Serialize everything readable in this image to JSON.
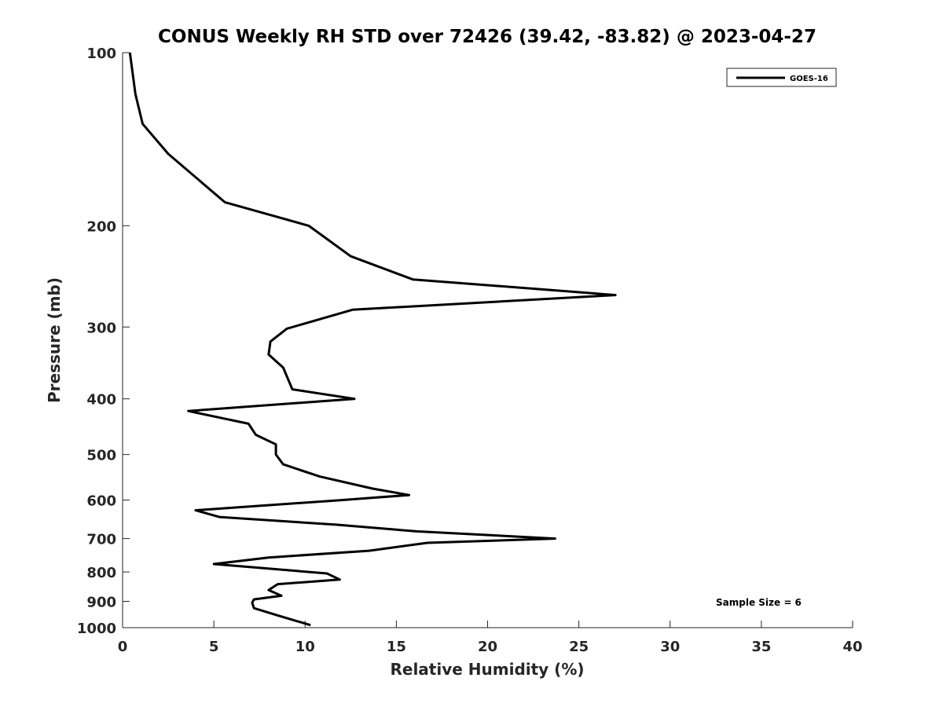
{
  "chart_data": {
    "type": "line",
    "title": "CONUS Weekly RH STD over 72426 (39.42, -83.82) @ 2023-04-27",
    "xlabel": "Relative Humidity (%)",
    "ylabel": "Pressure (mb)",
    "xlim": [
      0,
      40
    ],
    "ylim": [
      1000,
      100
    ],
    "yscale": "log",
    "y_direction": "reversed",
    "grid": false,
    "legend_position": "top-right",
    "x_ticks": [
      0,
      5,
      10,
      15,
      20,
      25,
      30,
      35,
      40
    ],
    "x_tick_labels": [
      "0",
      "5",
      "10",
      "15",
      "20",
      "25",
      "30",
      "35",
      "40"
    ],
    "y_ticks": [
      100,
      200,
      300,
      400,
      500,
      600,
      700,
      800,
      900,
      1000
    ],
    "y_tick_labels": [
      "100",
      "200",
      "300",
      "400",
      "500",
      "600",
      "700",
      "800",
      "900",
      "1000"
    ],
    "series": [
      {
        "name": "GOES-16",
        "color": "#000000",
        "points": [
          [
            0.4,
            100
          ],
          [
            0.7,
            118
          ],
          [
            1.1,
            133
          ],
          [
            2.5,
            150
          ],
          [
            5.6,
            182
          ],
          [
            10.2,
            200
          ],
          [
            12.5,
            226
          ],
          [
            15.9,
            248
          ],
          [
            27.0,
            264
          ],
          [
            12.6,
            280
          ],
          [
            9.0,
            302
          ],
          [
            8.1,
            318
          ],
          [
            8.0,
            335
          ],
          [
            8.8,
            353
          ],
          [
            9.3,
            385
          ],
          [
            12.7,
            400
          ],
          [
            3.6,
            420
          ],
          [
            6.9,
            442
          ],
          [
            7.3,
            462
          ],
          [
            8.4,
            480
          ],
          [
            8.4,
            500
          ],
          [
            8.8,
            520
          ],
          [
            10.8,
            546
          ],
          [
            13.7,
            573
          ],
          [
            15.7,
            588
          ],
          [
            12.0,
            600
          ],
          [
            4.0,
            625
          ],
          [
            5.3,
            642
          ],
          [
            11.7,
            662
          ],
          [
            16.1,
            680
          ],
          [
            23.7,
            700
          ],
          [
            16.7,
            712
          ],
          [
            13.5,
            735
          ],
          [
            8.0,
            755
          ],
          [
            5.0,
            775
          ],
          [
            11.2,
            805
          ],
          [
            11.9,
            825
          ],
          [
            8.5,
            840
          ],
          [
            8.0,
            860
          ],
          [
            8.7,
            880
          ],
          [
            7.2,
            893
          ],
          [
            7.1,
            905
          ],
          [
            7.2,
            925
          ],
          [
            8.5,
            952
          ],
          [
            10.3,
            990
          ]
        ]
      }
    ],
    "annotation": "Sample Size = 6"
  }
}
